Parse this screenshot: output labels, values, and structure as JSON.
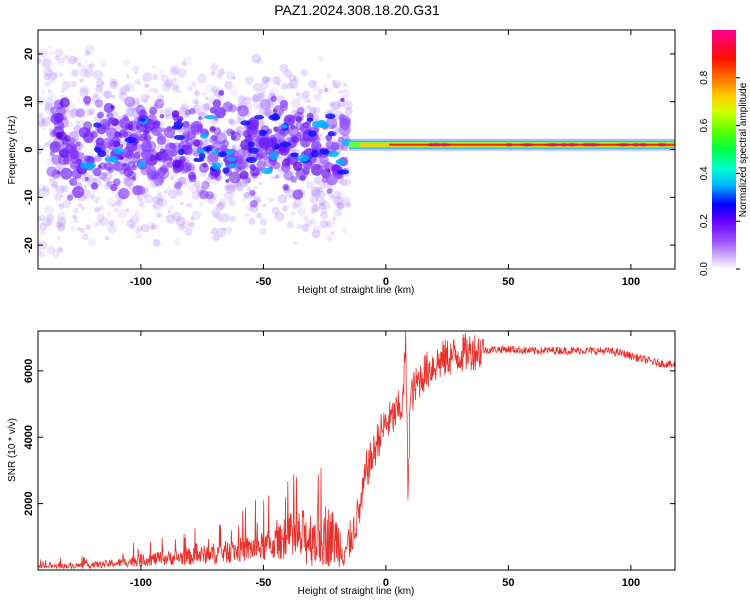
{
  "title": "PAZ1.2024.308.18.20.G31",
  "colors": {
    "snr_line": "#e8312d",
    "frame": "#000000"
  },
  "chart_data": [
    {
      "type": "heatmap",
      "xlabel": "Height of straight line (km)",
      "ylabel": "Frequency (Hz)",
      "xlim": [
        -142,
        118
      ],
      "ylim": [
        -25,
        25
      ],
      "x_ticks": [
        -100,
        -50,
        0,
        50,
        100
      ],
      "y_ticks": [
        -20,
        -10,
        0,
        10,
        20
      ],
      "colorbar": {
        "label": "Normalized spectral amplitude",
        "range": [
          0.0,
          1.0
        ],
        "ticks": [
          "0.0",
          "0.2",
          "0.4",
          "0.6",
          "0.8"
        ],
        "colormap": "rainbow",
        "colors": [
          "#ffffff",
          "#c8a8ff",
          "#6a00ff",
          "#0000ff",
          "#00c8ff",
          "#00ff80",
          "#80ff00",
          "#ffff00",
          "#ff8000",
          "#ff0000",
          "#ff00aa"
        ]
      },
      "features": {
        "noisy_region_x": [
          -142,
          -15
        ],
        "noisy_region_freq": [
          -22,
          22
        ],
        "tone_region_x": [
          -15,
          118
        ],
        "tone_freq_hz": 1.0,
        "tone_amplitude": 0.9
      }
    },
    {
      "type": "line",
      "xlabel": "Height of straight line (km)",
      "ylabel": "SNR (10 * v/v)",
      "xlim": [
        -142,
        118
      ],
      "ylim": [
        0,
        7200
      ],
      "x_ticks": [
        -100,
        -50,
        0,
        50,
        100
      ],
      "y_ticks": [
        2000,
        4000,
        6000
      ],
      "series": [
        {
          "x": [
            -142,
            -130,
            -120,
            -110,
            -100,
            -90,
            -80,
            -70,
            -60,
            -50,
            -45,
            -40,
            -35,
            -30,
            -25,
            -20,
            -17,
            -15,
            -12,
            -10,
            -8,
            -5,
            -3,
            0,
            3,
            5,
            7,
            8,
            9,
            10,
            12,
            15,
            20,
            25,
            30,
            35,
            40,
            45,
            50,
            60,
            70,
            75,
            80,
            85,
            90,
            95,
            100,
            105,
            110,
            115,
            118
          ],
          "values": [
            100,
            120,
            150,
            200,
            300,
            350,
            400,
            500,
            600,
            700,
            800,
            900,
            950,
            1000,
            1100,
            900,
            600,
            800,
            1500,
            2000,
            3000,
            3500,
            4000,
            4400,
            4600,
            4800,
            5000,
            7000,
            2500,
            5200,
            5500,
            5900,
            6200,
            6400,
            6500,
            6600,
            6620,
            6650,
            6650,
            6600,
            6620,
            6600,
            6620,
            6600,
            6600,
            6550,
            6450,
            6350,
            6250,
            6200,
            6150
          ]
        }
      ]
    }
  ]
}
